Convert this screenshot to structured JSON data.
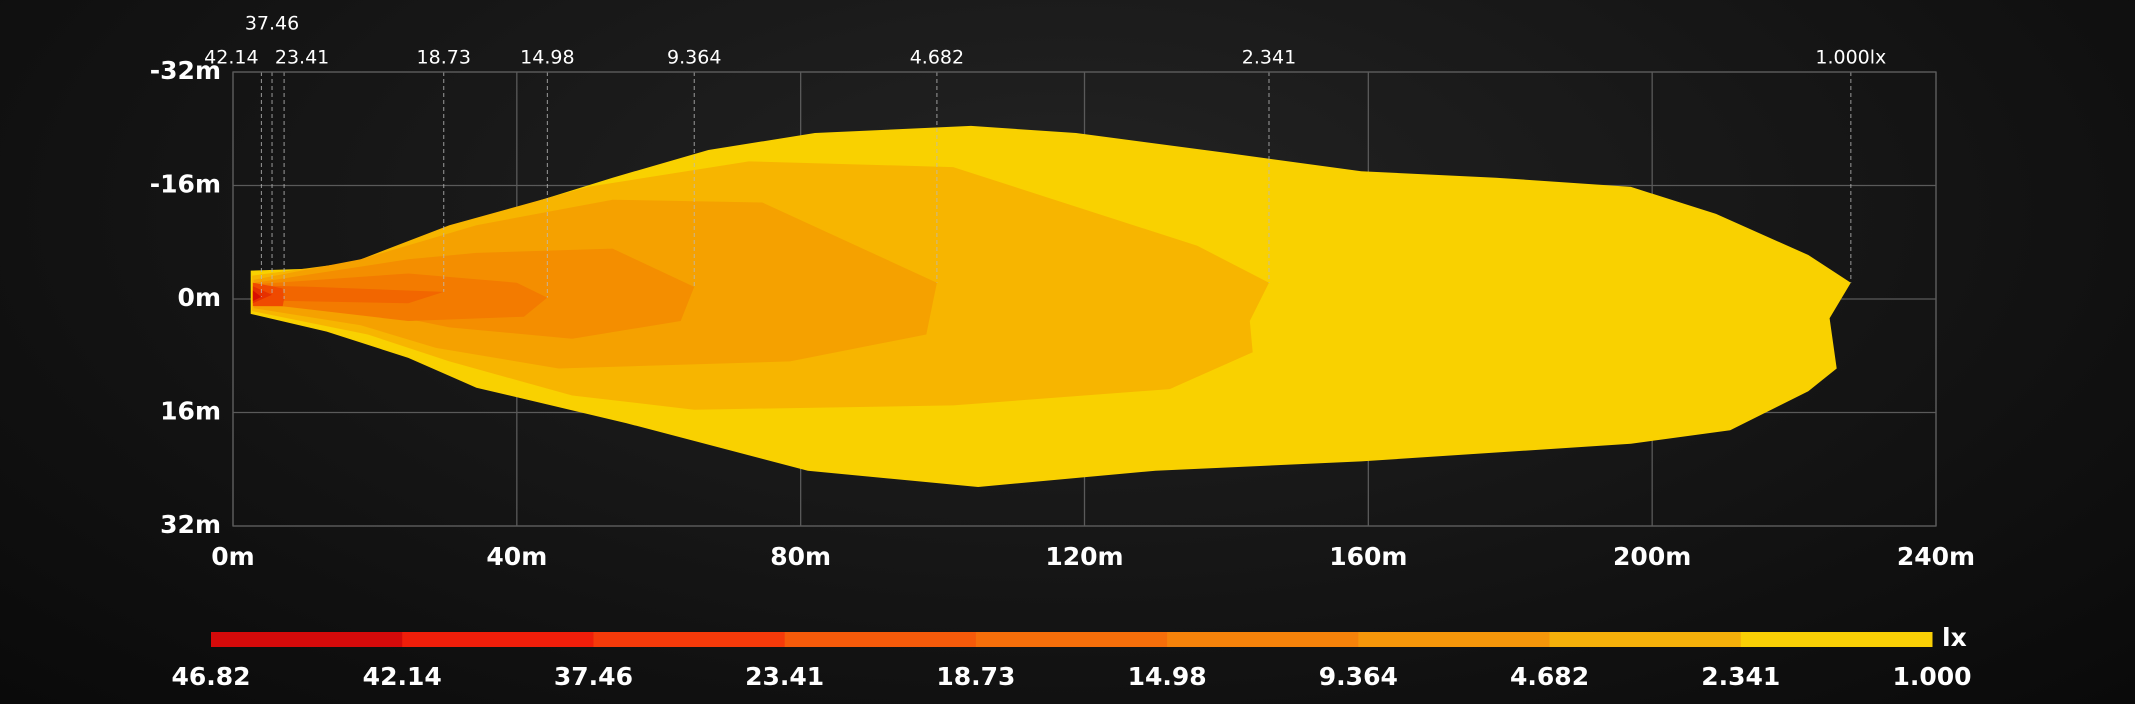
{
  "chart_data": {
    "type": "isolux",
    "xlim": [
      0,
      240
    ],
    "xticks": [
      {
        "value": 0,
        "label": "0m"
      },
      {
        "value": 40,
        "label": "40m"
      },
      {
        "value": 80,
        "label": "80m"
      },
      {
        "value": 120,
        "label": "120m"
      },
      {
        "value": 160,
        "label": "160m"
      },
      {
        "value": 200,
        "label": "200m"
      },
      {
        "value": 240,
        "label": "240m"
      }
    ],
    "ylim": [
      -32,
      32
    ],
    "y_inverted": true,
    "yticks": [
      {
        "value": -32,
        "label": "-32m"
      },
      {
        "value": -16,
        "label": "-16m"
      },
      {
        "value": 0,
        "label": "0m"
      },
      {
        "value": 16,
        "label": "16m"
      },
      {
        "value": 32,
        "label": "32m"
      }
    ],
    "grid": true,
    "contours": [
      {
        "label": "1.000lx",
        "color": "#f9d100",
        "x": [
          2.5,
          15,
          28.6,
          40,
          53.5,
          67,
          82,
          104,
          118.8,
          140,
          159,
          178,
          197,
          209,
          222,
          228,
          225,
          226,
          222,
          211,
          197,
          159,
          130,
          105,
          81,
          55.4,
          34.3,
          24.7,
          13.2,
          2.5
        ],
        "y": [
          -4,
          -4.4,
          -9,
          -12.9,
          -17.1,
          -21,
          -23.4,
          -24.4,
          -23.4,
          -20.6,
          -18,
          -17.1,
          -15.8,
          -12,
          -6.2,
          -2.3,
          2.7,
          9.8,
          13,
          18.5,
          20.4,
          22.9,
          24.2,
          26.5,
          24.2,
          17.5,
          12.5,
          8.3,
          4.6,
          2.1
        ]
      },
      {
        "label": "2.341",
        "color": "#f7b500",
        "x": [
          2.7,
          17,
          30.5,
          50,
          72.7,
          101.5,
          135.9,
          146,
          143.3,
          143.7,
          132,
          101.5,
          65,
          47.8,
          30.5,
          19,
          2.7
        ],
        "y": [
          -3.3,
          -5.2,
          -10.4,
          -15.8,
          -19.4,
          -18.6,
          -7.5,
          -2.3,
          3.1,
          7.5,
          12.7,
          15,
          15.6,
          13.6,
          8.8,
          5,
          1.7
        ]
      },
      {
        "label": "4.682",
        "color": "#f5a100",
        "x": [
          2.9,
          18,
          34.3,
          53.5,
          74.6,
          99.2,
          97.7,
          78.5,
          45.9,
          28.6,
          18,
          2.9
        ],
        "y": [
          -2.7,
          -5.6,
          -10.4,
          -14,
          -13.6,
          -2.3,
          5,
          8.8,
          9.8,
          6.9,
          3.7,
          1.3
        ]
      },
      {
        "label": "9.364",
        "color": "#f48e00",
        "x": [
          3.1,
          24.7,
          34.3,
          53.5,
          65,
          63.1,
          47.8,
          30.5,
          17,
          3.1
        ],
        "y": [
          -2.3,
          -5.6,
          -6.5,
          -7.1,
          -1.7,
          3.1,
          5.6,
          4,
          1.2,
          1
        ]
      },
      {
        "label": "14.98",
        "color": "#f37b00",
        "x": [
          3.3,
          24.7,
          40,
          44.3,
          41,
          24.7,
          3.3
        ],
        "y": [
          -2.1,
          -3.6,
          -2.3,
          -0.2,
          2.5,
          3.1,
          0.6
        ]
      },
      {
        "label": "18.73",
        "color": "#f26600",
        "x": [
          3.5,
          11.3,
          29.7,
          24.7,
          3.5
        ],
        "y": [
          -1.9,
          -1.7,
          -1,
          0.6,
          0.2
        ]
      },
      {
        "label": "23.41",
        "color": "#f04a00",
        "x": [
          2.8,
          7,
          7.2,
          7,
          2.8
        ],
        "y": [
          -2.3,
          -1.5,
          0,
          1,
          1
        ]
      },
      {
        "label": "37.46",
        "color": "#e63000",
        "x": [
          2.8,
          5.5,
          2.8
        ],
        "y": [
          -1.8,
          -0.6,
          0.6
        ]
      },
      {
        "label": "42.14",
        "color": "#d81000",
        "x": [
          2.8,
          4,
          2.8
        ],
        "y": [
          -1.2,
          -0.3,
          0.3
        ]
      }
    ],
    "colorbar": {
      "labels": [
        "46.82",
        "42.14",
        "37.46",
        "23.41",
        "18.73",
        "14.98",
        "9.364",
        "4.682",
        "2.341",
        "1.000"
      ],
      "colors": [
        "#d50a0a",
        "#f01e0a",
        "#f53a0a",
        "#f55a0a",
        "#f56e0a",
        "#f5820a",
        "#f5960a",
        "#f5b00a",
        "#f9cf05"
      ],
      "unit": "lx"
    }
  }
}
